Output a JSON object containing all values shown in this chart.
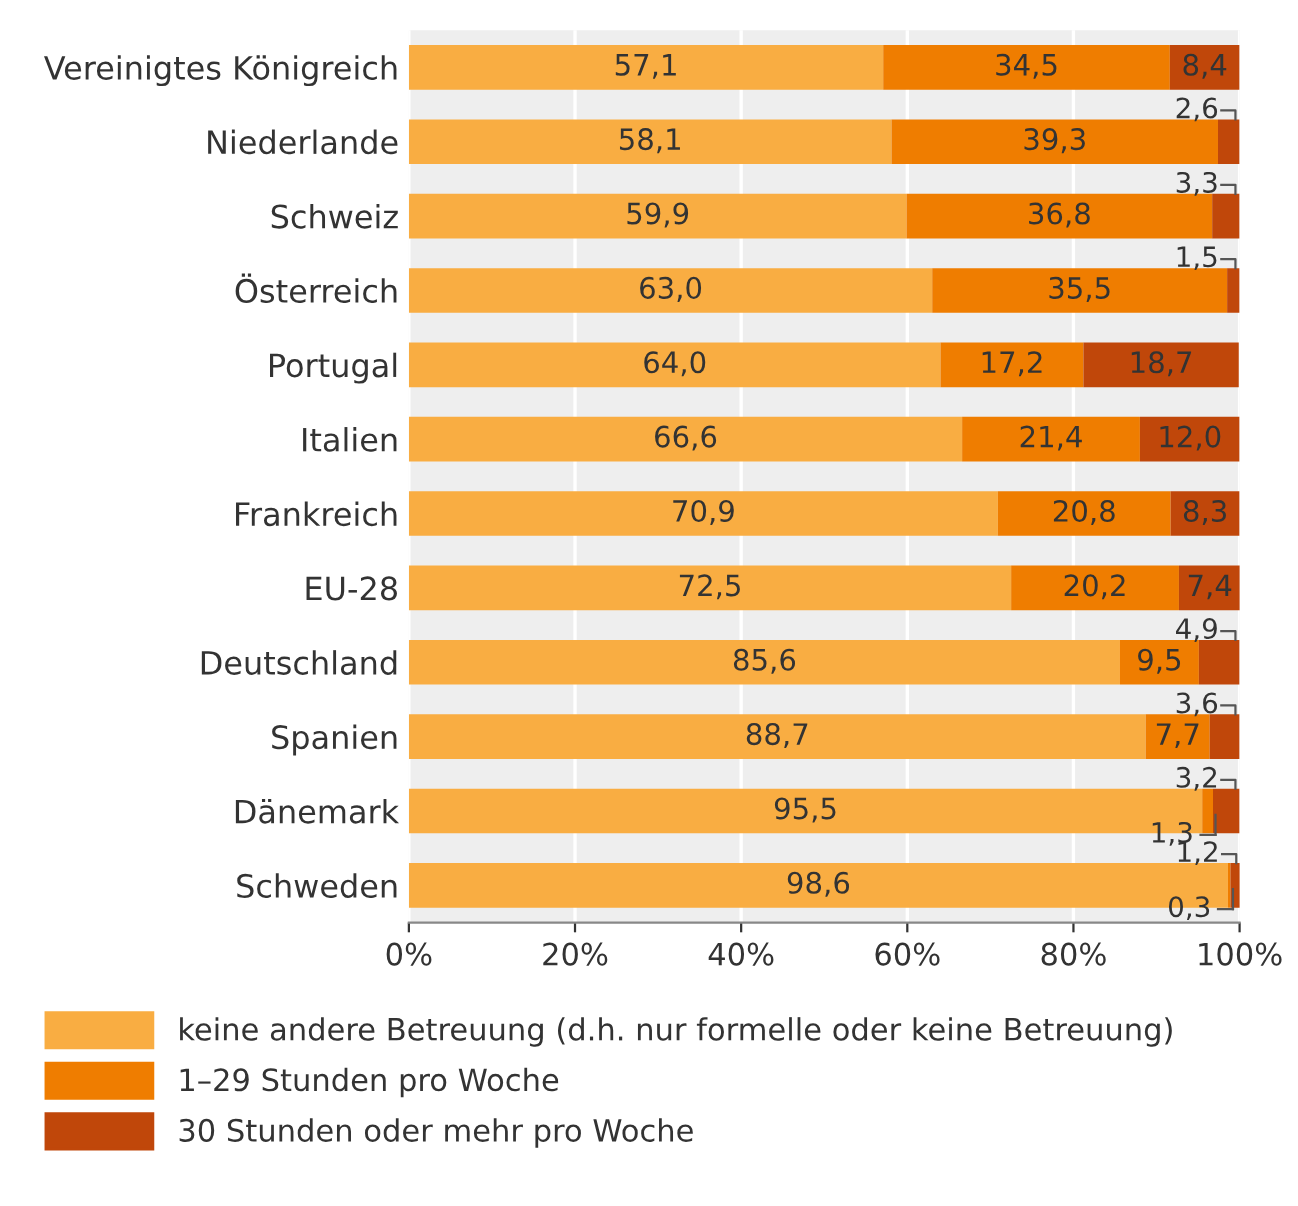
{
  "chart_data": {
    "type": "bar",
    "orientation": "horizontal",
    "stacked": true,
    "categories": [
      "Vereinigtes Königreich",
      "Niederlande",
      "Schweiz",
      "Österreich",
      "Portugal",
      "Italien",
      "Frankreich",
      "EU-28",
      "Deutschland",
      "Spanien",
      "Dänemark",
      "Schweden"
    ],
    "series": [
      {
        "name": "keine andere Betreuung (d.h. nur formelle oder keine Betreuung)",
        "color": "#f9ad42",
        "values": [
          57.1,
          58.1,
          59.9,
          63.0,
          64.0,
          66.6,
          70.9,
          72.5,
          85.6,
          88.7,
          95.5,
          98.6
        ],
        "value_labels": [
          "57,1",
          "58,1",
          "59,9",
          "63,0",
          "64,0",
          "66,6",
          "70,9",
          "72,5",
          "85,6",
          "88,7",
          "95,5",
          "98,6"
        ]
      },
      {
        "name": "1–29 Stunden pro Woche",
        "color": "#ef7d00",
        "values": [
          34.5,
          39.3,
          36.8,
          35.5,
          17.2,
          21.4,
          20.8,
          20.2,
          9.5,
          7.7,
          1.3,
          0.3
        ],
        "value_labels": [
          "34,5",
          "39,3",
          "36,8",
          "35,5",
          "17,2",
          "21,4",
          "20,8",
          "20,2",
          "9,5",
          "7,7",
          "1,3",
          "0,3"
        ]
      },
      {
        "name": "30 Stunden oder mehr pro Woche",
        "color": "#c0470a",
        "values": [
          8.4,
          2.6,
          3.3,
          1.5,
          18.7,
          12.0,
          8.3,
          7.4,
          4.9,
          3.6,
          3.2,
          1.2
        ],
        "value_labels": [
          "8,4",
          "2,6",
          "3,3",
          "1,5",
          "18,7",
          "12,0",
          "8,3",
          "7,4",
          "4,9",
          "3,6",
          "3,2",
          "1,2"
        ]
      }
    ],
    "xlim": [
      0,
      100
    ],
    "xticks": [
      {
        "value": 0,
        "label": "0%"
      },
      {
        "value": 20,
        "label": "20%"
      },
      {
        "value": 40,
        "label": "40%"
      },
      {
        "value": 60,
        "label": "60%"
      },
      {
        "value": 80,
        "label": "80%"
      },
      {
        "value": 100,
        "label": "100%"
      }
    ],
    "grid": "x",
    "legend": "bottom"
  }
}
